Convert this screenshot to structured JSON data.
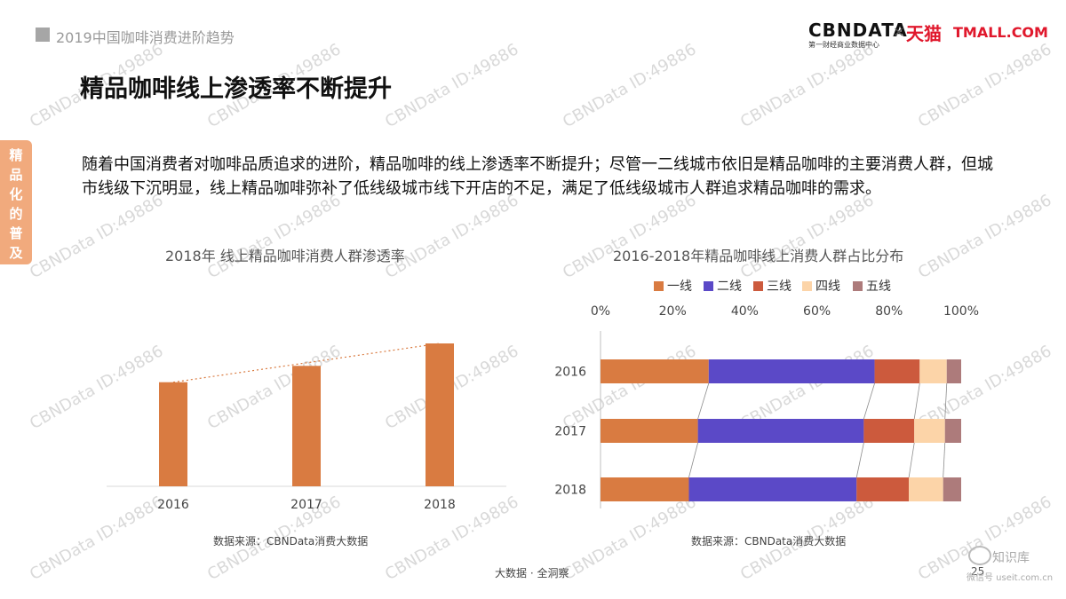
{
  "header": {
    "report_title": "2019中国咖啡消费进阶趋势",
    "logo_cbn": "CBNDATA",
    "logo_cbn_sub": "第一财经商业数据中心",
    "logo_x": "×",
    "logo_tmall_cn": "天猫",
    "logo_tmall_en": "TMALL.COM"
  },
  "page_title": "精品咖啡线上渗透率不断提升",
  "side_tab": {
    "chars": [
      "精",
      "品",
      "化",
      "的",
      "普",
      "及"
    ],
    "color": "#f1aa7d"
  },
  "intro": "随着中国消费者对咖啡品质追求的进阶，精品咖啡的线上渗透率不断提升；尽管一二线城市依旧是精品咖啡的主要消费人群，但城市线级下沉明显，线上精品咖啡弥补了低线级城市线下开店的不足，满足了低线级城市人群追求精品咖啡的需求。",
  "watermark": "CBNData ID:49886",
  "chart_data": [
    {
      "type": "bar",
      "title": "2018年 线上精品咖啡消费人群渗透率",
      "categories": [
        "2016",
        "2017",
        "2018"
      ],
      "values": [
        0.51,
        0.59,
        0.7
      ],
      "trendline": "dotted",
      "color": "#d97b41",
      "y_axis_shown": false,
      "source": "数据来源：CBNData消费大数据"
    },
    {
      "type": "bar",
      "orientation": "horizontal",
      "stacked": true,
      "title": "2016-2018年精品咖啡线上消费人群占比分布",
      "categories": [
        "2016",
        "2017",
        "2018"
      ],
      "xlim": [
        0,
        100
      ],
      "x_ticks": [
        "0%",
        "20%",
        "40%",
        "60%",
        "80%",
        "100%"
      ],
      "legend_position": "top",
      "series": [
        {
          "name": "一线",
          "color": "#d97b41",
          "values": [
            30,
            27,
            24.5
          ]
        },
        {
          "name": "二线",
          "color": "#5b49c7",
          "values": [
            46,
            46,
            46.5
          ]
        },
        {
          "name": "三线",
          "color": "#cc5a3d",
          "values": [
            12.5,
            14,
            14.5
          ]
        },
        {
          "name": "四线",
          "color": "#fcd4a8",
          "values": [
            7.5,
            8.5,
            9.5
          ]
        },
        {
          "name": "五线",
          "color": "#ad7b7b",
          "values": [
            4,
            4.5,
            5
          ]
        }
      ],
      "source": "数据来源：CBNData消费大数据"
    }
  ],
  "footer": "大数据 · 全洞察",
  "page_number": "25",
  "wechat": {
    "name": "知识库",
    "sub": "微信号 useit.com.cn"
  }
}
